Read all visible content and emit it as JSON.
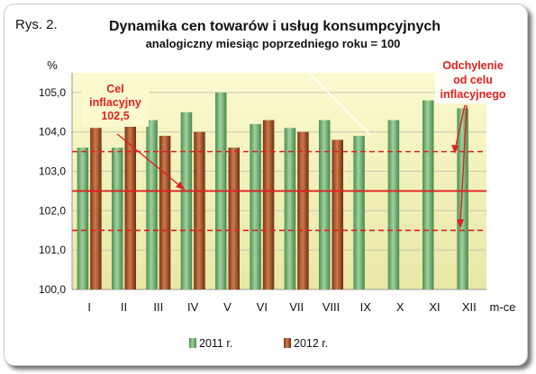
{
  "figure_label": "Rys. 2.",
  "chart_data": {
    "type": "bar",
    "title": "Dynamika cen towarów i usług konsumpcyjnych",
    "subtitle": "analogiczny miesiąc poprzedniego roku = 100",
    "ylabel": "%",
    "xlabel": "m-ce",
    "ylim": [
      100,
      105.5
    ],
    "yticks": [
      "100,0",
      "101,0",
      "102,0",
      "103,0",
      "104,0",
      "105,0"
    ],
    "ytick_values": [
      100,
      101,
      102,
      103,
      104,
      105
    ],
    "categories": [
      "I",
      "II",
      "III",
      "IV",
      "V",
      "VI",
      "VII",
      "VIII",
      "IX",
      "X",
      "XI",
      "XII"
    ],
    "series": [
      {
        "name": "2011 r.",
        "color": "#6aa86a",
        "values": [
          103.6,
          103.6,
          104.3,
          104.5,
          105.0,
          104.2,
          104.1,
          104.3,
          103.9,
          104.3,
          104.8,
          104.6
        ]
      },
      {
        "name": "2012 r.",
        "color": "#a0522d",
        "values": [
          104.1,
          104.3,
          103.9,
          104.0,
          103.6,
          104.3,
          104.0,
          103.8,
          null,
          null,
          null,
          null
        ]
      }
    ],
    "target_line": {
      "value": 102.5,
      "color": "#e02020"
    },
    "tolerance_band": {
      "upper": 103.5,
      "lower": 101.5,
      "color": "#e02020"
    },
    "annotations": [
      {
        "name": "cel",
        "text_lines": [
          "Cel",
          "inflacyjny",
          "102,5"
        ],
        "color": "#e02020"
      },
      {
        "name": "odchylenie",
        "text_lines": [
          "Odchylenie",
          "od celu",
          "inflacyjnego"
        ],
        "color": "#e02020"
      }
    ],
    "grid": true,
    "legend_position": "bottom"
  }
}
